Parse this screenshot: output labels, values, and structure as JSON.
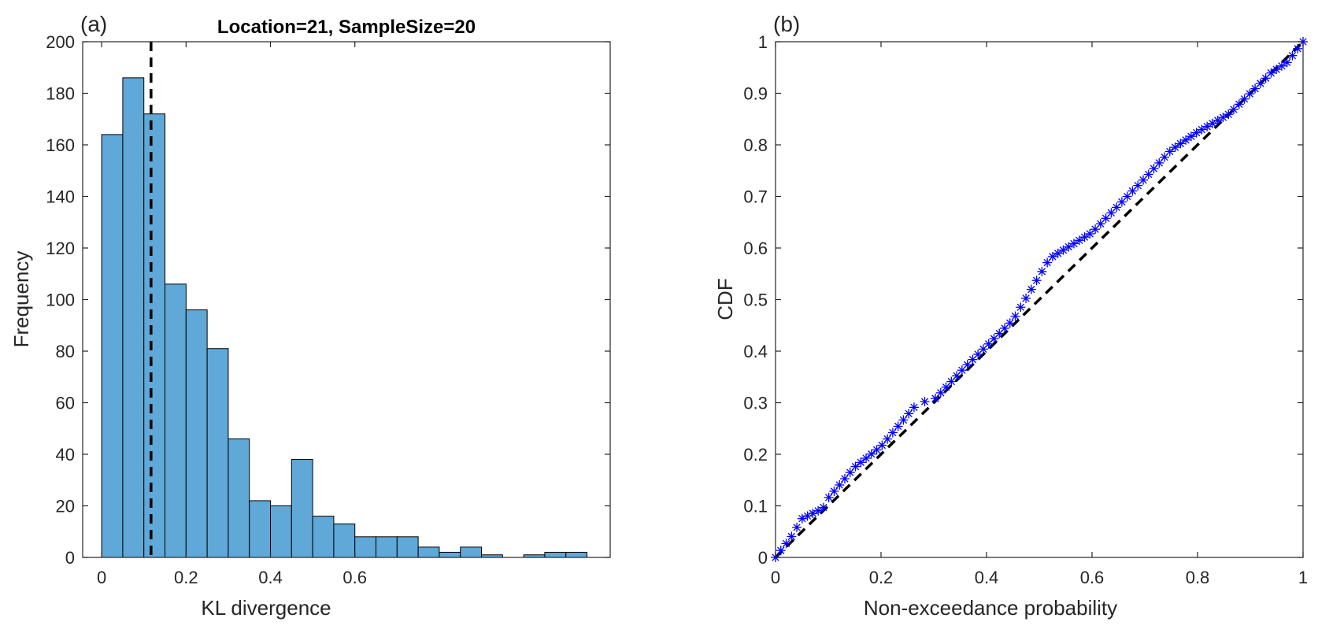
{
  "chart_data": [
    {
      "type": "bar",
      "panel_label": "(a)",
      "title": "Location=21, SampleSize=20",
      "xlabel": "KL divergence",
      "ylabel": "Frequency",
      "xlim": [
        -0.045,
        1.205
      ],
      "ylim": [
        0,
        200
      ],
      "xticks": [
        0,
        0.2,
        0.4,
        0.6
      ],
      "yticks": [
        0,
        20,
        40,
        60,
        80,
        100,
        120,
        140,
        160,
        180,
        200
      ],
      "bin_width": 0.05,
      "bin_edges_start": 0,
      "values": [
        164,
        186,
        172,
        106,
        96,
        81,
        46,
        22,
        20,
        38,
        16,
        13,
        8,
        8,
        8,
        4,
        2,
        4,
        1,
        0,
        1,
        2,
        2
      ],
      "bar_color": "#5fa8d8",
      "reference_line_x": 0.117,
      "grid": false
    },
    {
      "type": "scatter",
      "panel_label": "(b)",
      "xlabel": "Non-exceedance probability",
      "ylabel": "CDF",
      "xlim": [
        0,
        1
      ],
      "ylim": [
        0,
        1
      ],
      "xticks": [
        0,
        0.2,
        0.4,
        0.6,
        0.8,
        1
      ],
      "yticks": [
        0,
        0.1,
        0.2,
        0.3,
        0.4,
        0.5,
        0.6,
        0.7,
        0.8,
        0.9,
        1
      ],
      "marker_color": "#0000ff",
      "reference_line": [
        [
          0,
          0
        ],
        [
          1,
          1
        ]
      ],
      "grid": false
    }
  ],
  "tick_labels": {
    "a_x": [
      "0",
      "0.2",
      "0.4",
      "0.6"
    ],
    "a_y": [
      "0",
      "20",
      "40",
      "60",
      "80",
      "100",
      "120",
      "140",
      "160",
      "180",
      "200"
    ],
    "b_x": [
      "0",
      "0.2",
      "0.4",
      "0.6",
      "0.8",
      "1"
    ],
    "b_y": [
      "0",
      "0.1",
      "0.2",
      "0.3",
      "0.4",
      "0.5",
      "0.6",
      "0.7",
      "0.8",
      "0.9",
      "1"
    ]
  }
}
